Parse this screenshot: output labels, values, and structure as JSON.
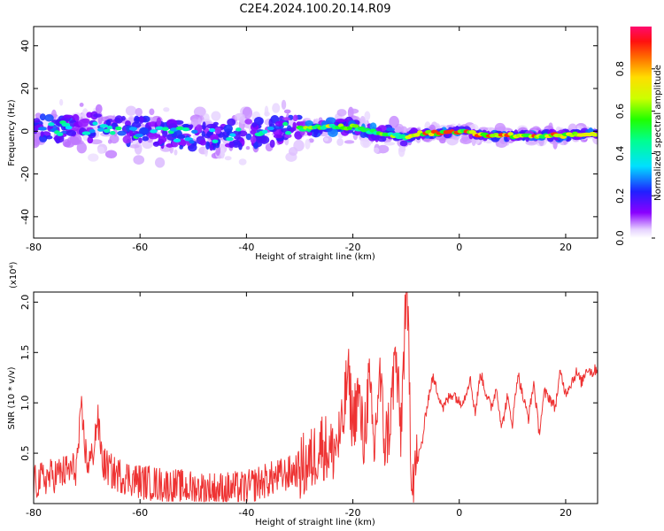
{
  "title": "C2E4.2024.100.20.14.R09",
  "colors": {
    "snr_line": "#ee3333",
    "spectrum_bg": "#ffffff",
    "axis": "#000000"
  },
  "chart_data": [
    {
      "type": "heatmap",
      "xlabel": "Height of straight line (km)",
      "ylabel": "Frequency (Hz)",
      "xlim": [
        -80,
        26
      ],
      "ylim": [
        -50,
        49
      ],
      "xticks": [
        -80,
        -60,
        -40,
        -20,
        0,
        20
      ],
      "yticks": [
        -40,
        -20,
        0,
        20,
        40
      ],
      "ridge": {
        "x": [
          -80,
          -70,
          -60,
          -50,
          -45,
          -40,
          -35,
          -30,
          -25,
          -20,
          -15,
          -10,
          -8,
          -5,
          0,
          5,
          10,
          15,
          20,
          26
        ],
        "y": [
          1,
          2,
          0,
          -2,
          -2,
          -1,
          0,
          1,
          2,
          2,
          -1,
          -3,
          -1,
          -1,
          0,
          -2,
          -2,
          -2,
          -2,
          -1
        ]
      },
      "colorbar": {
        "label": "Normalized spectral amplitude",
        "range": [
          0,
          1
        ],
        "ticks": [
          0.0,
          0.2,
          0.4,
          0.6,
          0.8
        ]
      }
    },
    {
      "type": "line",
      "xlabel": "Height of straight line (km)",
      "ylabel": "SNR (10 * v/v)",
      "y_multiplier": "(x10⁴)",
      "xlim": [
        -80,
        26
      ],
      "ylim": [
        0,
        2.1
      ],
      "xticks": [
        -80,
        -60,
        -40,
        -20,
        0,
        20
      ],
      "yticks": [
        0.5,
        1.0,
        1.5,
        2.0
      ],
      "ytick_labels": [
        "0.5",
        "1.0",
        "1.5",
        "2.0"
      ],
      "series": [
        {
          "x": [
            -80,
            -78,
            -75,
            -72,
            -71,
            -70,
            -69,
            -68,
            -67,
            -65,
            -60,
            -55,
            -50,
            -45,
            -40,
            -38,
            -35,
            -32,
            -30,
            -28,
            -27,
            -26,
            -24,
            -22,
            -21,
            -20,
            -19,
            -18,
            -17,
            -16,
            -15,
            -14,
            -13,
            -12,
            -11,
            -10,
            -9.5,
            -9,
            -8,
            -7,
            -6,
            -5,
            -4,
            -3,
            -2,
            -1,
            0,
            1,
            2,
            3,
            4,
            5,
            6,
            7,
            8,
            9,
            10,
            11,
            12,
            13,
            14,
            15,
            16,
            17,
            18,
            19,
            20,
            21,
            22,
            23,
            24,
            25,
            26
          ],
          "y": [
            0.2,
            0.25,
            0.3,
            0.35,
            0.9,
            0.4,
            0.45,
            0.85,
            0.4,
            0.3,
            0.22,
            0.18,
            0.15,
            0.14,
            0.15,
            0.2,
            0.25,
            0.3,
            0.35,
            0.4,
            0.5,
            0.6,
            0.5,
            0.7,
            1.3,
            0.8,
            1.1,
            0.6,
            1.2,
            0.5,
            1.3,
            0.6,
            0.8,
            1.5,
            0.7,
            2.1,
            1.6,
            0.3,
            0.4,
            0.6,
            1.0,
            1.25,
            1.1,
            0.95,
            1.05,
            1.1,
            1.0,
            1.05,
            1.25,
            0.9,
            1.3,
            1.1,
            0.95,
            1.15,
            0.75,
            1.05,
            0.8,
            1.3,
            1.05,
            0.85,
            1.2,
            0.7,
            1.1,
            1.05,
            0.95,
            1.3,
            1.1,
            1.2,
            1.3,
            1.2,
            1.35,
            1.3,
            1.35
          ]
        }
      ]
    }
  ]
}
